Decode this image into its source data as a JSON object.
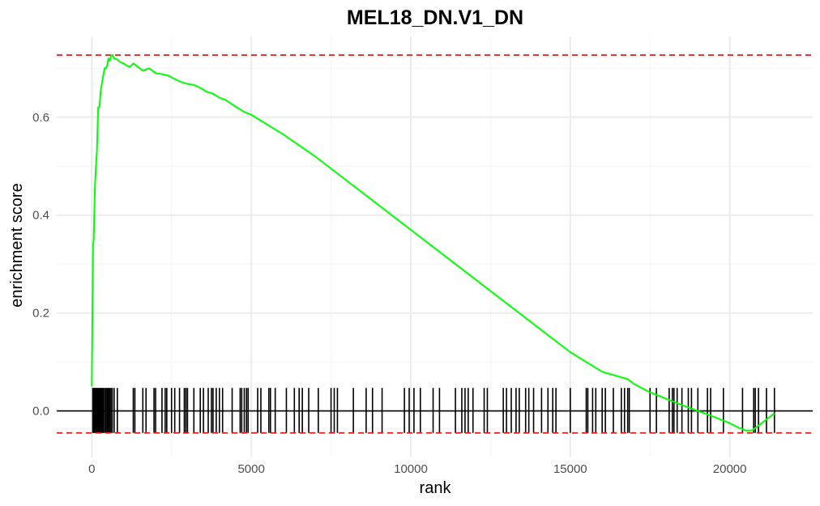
{
  "chart_data": {
    "type": "line",
    "title": "MEL18_DN.V1_DN",
    "xlabel": "rank",
    "ylabel": "enrichment score",
    "xlim": [
      -1100,
      22600
    ],
    "ylim": [
      -0.095,
      0.765
    ],
    "x_ticks": [
      0,
      5000,
      10000,
      15000,
      20000
    ],
    "x_tick_labels": [
      "0",
      "5000",
      "10000",
      "15000",
      "20000"
    ],
    "y_ticks": [
      0.0,
      0.2,
      0.4,
      0.6
    ],
    "y_tick_labels": [
      "0.0",
      "0.2",
      "0.4",
      "0.6"
    ],
    "grid": true,
    "legend": "none",
    "series": [
      {
        "color": "#00ff00",
        "x": [
          0,
          20,
          40,
          60,
          80,
          100,
          130,
          160,
          200,
          240,
          280,
          320,
          360,
          400,
          440,
          480,
          520,
          560,
          600,
          650,
          700,
          800,
          900,
          1000,
          1100,
          1200,
          1300,
          1400,
          1600,
          1800,
          2000,
          2200,
          2400,
          2600,
          2800,
          3000,
          3200,
          3400,
          3600,
          3800,
          4000,
          4200,
          4500,
          4800,
          5000,
          5500,
          6000,
          7000,
          8000,
          9000,
          10000,
          11000,
          12000,
          13000,
          14000,
          15000,
          16000,
          16800,
          17000,
          17500,
          18000,
          18500,
          19000,
          19500,
          20000,
          20300,
          20500,
          20700,
          20900,
          21100,
          21300,
          21400
        ],
        "values": [
          0.05,
          0.2,
          0.34,
          0.35,
          0.41,
          0.46,
          0.5,
          0.53,
          0.62,
          0.62,
          0.655,
          0.67,
          0.685,
          0.7,
          0.7,
          0.705,
          0.72,
          0.715,
          0.725,
          0.727,
          0.72,
          0.718,
          0.712,
          0.71,
          0.705,
          0.703,
          0.71,
          0.705,
          0.695,
          0.7,
          0.69,
          0.688,
          0.685,
          0.678,
          0.672,
          0.668,
          0.666,
          0.66,
          0.652,
          0.648,
          0.64,
          0.635,
          0.622,
          0.61,
          0.605,
          0.585,
          0.565,
          0.52,
          0.47,
          0.42,
          0.37,
          0.32,
          0.27,
          0.22,
          0.17,
          0.12,
          0.08,
          0.065,
          0.055,
          0.038,
          0.025,
          0.012,
          0.0,
          -0.012,
          -0.025,
          -0.035,
          -0.04,
          -0.04,
          -0.03,
          -0.02,
          -0.01,
          -0.005
        ]
      }
    ],
    "reference_lines": {
      "max_es": 0.727,
      "min_es": -0.045,
      "color": "#e41a1c"
    },
    "hit_ranks": [
      30,
      60,
      90,
      120,
      150,
      180,
      210,
      240,
      270,
      300,
      330,
      360,
      400,
      440,
      480,
      520,
      560,
      600,
      640,
      700,
      800,
      1300,
      1350,
      1600,
      1700,
      1950,
      2000,
      2200,
      2300,
      2350,
      2500,
      2600,
      2750,
      2900,
      2950,
      3000,
      3200,
      3400,
      3500,
      3650,
      3750,
      3800,
      3900,
      4000,
      4100,
      4400,
      4650,
      4700,
      4780,
      4850,
      4900,
      5200,
      5300,
      5550,
      5600,
      5750,
      6100,
      6350,
      6500,
      6600,
      6800,
      7100,
      7500,
      7600,
      7700,
      8200,
      8600,
      8800,
      9100,
      9800,
      9950,
      10100,
      10300,
      10700,
      10900,
      11400,
      11600,
      11700,
      11800,
      11950,
      12300,
      12400,
      12900,
      13000,
      13150,
      13300,
      13400,
      13600,
      13700,
      13850,
      14100,
      14300,
      14450,
      14550,
      15000,
      15500,
      15550,
      15700,
      15800,
      16000,
      16100,
      16350,
      16600,
      16700,
      16800,
      16850,
      17500,
      17700,
      18100,
      18200,
      18250,
      18350,
      18500,
      18700,
      18800,
      19000,
      19300,
      19400,
      19800,
      20400,
      20750,
      20800,
      20900,
      21150,
      21400
    ]
  }
}
